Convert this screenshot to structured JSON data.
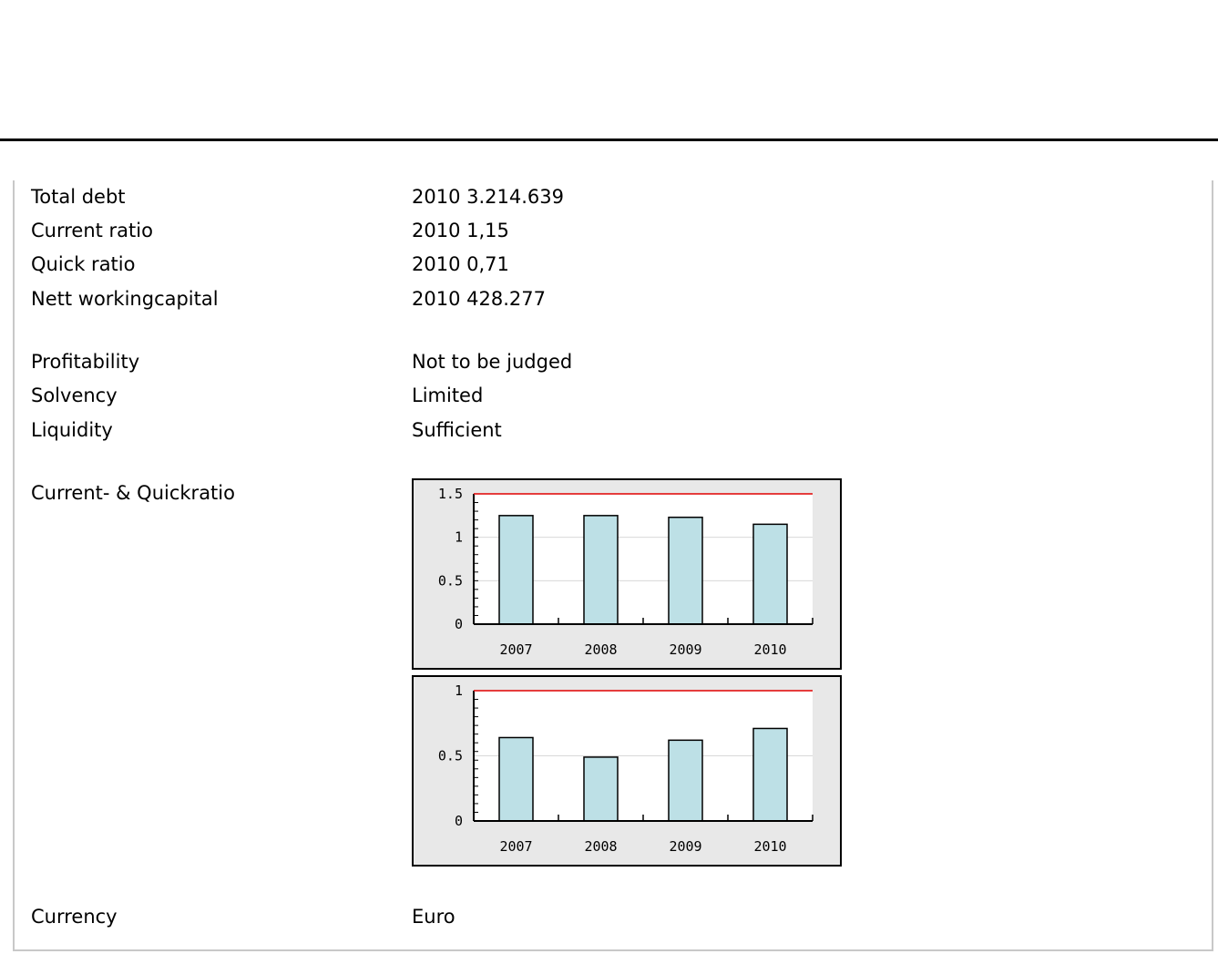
{
  "rows": [
    {
      "label": "Total debt",
      "value": "2010 3.214.639"
    },
    {
      "label": "Current ratio",
      "value": "2010 1,15"
    },
    {
      "label": "Quick ratio",
      "value": "2010 0,71"
    },
    {
      "label": "Nett workingcapital",
      "value": "2010 428.277"
    },
    {
      "label": "Profitability",
      "value": "Not to be judged"
    },
    {
      "label": "Solvency",
      "value": "Limited"
    },
    {
      "label": "Liquidity",
      "value": "Sufficient"
    }
  ],
  "charts_section_label": "Current- & Quickratio",
  "currency": {
    "label": "Currency",
    "value": "Euro"
  },
  "colors": {
    "bar": "#bde0e6",
    "reference_line": "#e00000",
    "plot_bg": "#ffffff",
    "frame_bg": "#e8e8e8"
  },
  "chart_data": [
    {
      "type": "bar",
      "categories": [
        "2007",
        "2008",
        "2009",
        "2010"
      ],
      "values": [
        1.25,
        1.25,
        1.23,
        1.15
      ],
      "ylim": [
        0,
        1.5
      ],
      "yticks": [
        "0",
        "0.5",
        "1",
        "1.5"
      ],
      "ytick_values": [
        0,
        0.5,
        1,
        1.5
      ],
      "reference_line": 1.5,
      "title": "",
      "xlabel": "",
      "ylabel": "",
      "grid": true
    },
    {
      "type": "bar",
      "categories": [
        "2007",
        "2008",
        "2009",
        "2010"
      ],
      "values": [
        0.64,
        0.49,
        0.62,
        0.71
      ],
      "ylim": [
        0,
        1
      ],
      "yticks": [
        "0",
        "0.5",
        "1"
      ],
      "ytick_values": [
        0,
        0.5,
        1
      ],
      "reference_line": 1,
      "title": "",
      "xlabel": "",
      "ylabel": "",
      "grid": true
    }
  ]
}
